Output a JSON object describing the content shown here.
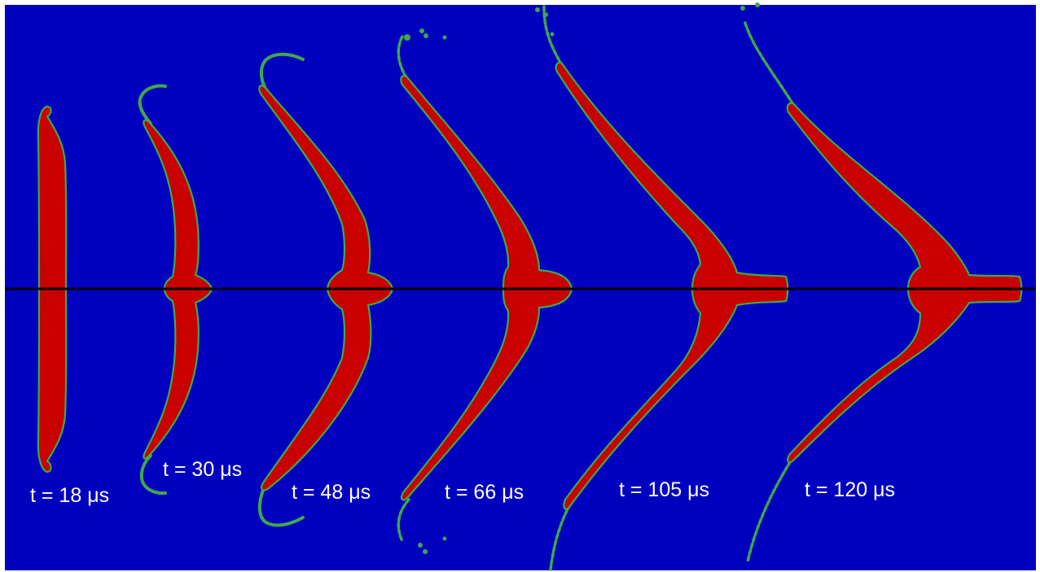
{
  "figure": {
    "background_color": "#0000bf",
    "liquid_color": "#c80000",
    "interface_color": "#3fa84a",
    "axis_line_color": "#000000",
    "snapshots": [
      {
        "id": "s1",
        "label": "t = 18 μs"
      },
      {
        "id": "s2",
        "label": "t = 30 μs"
      },
      {
        "id": "s3",
        "label": "t = 48 μs"
      },
      {
        "id": "s4",
        "label": "t = 66 μs"
      },
      {
        "id": "s5",
        "label": "t = 105 μs"
      },
      {
        "id": "s6",
        "label": "t = 120 μs"
      }
    ]
  }
}
